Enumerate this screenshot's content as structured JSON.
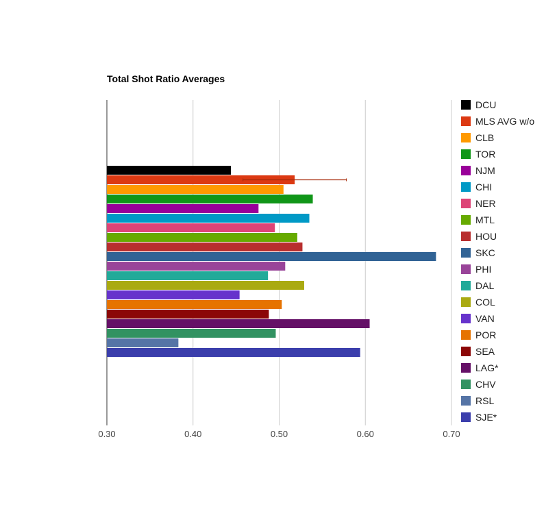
{
  "chart_data": {
    "type": "bar",
    "orientation": "horizontal",
    "title": "Total Shot Ratio Averages",
    "xlabel": "",
    "ylabel": "",
    "xlim": [
      0.3,
      0.7
    ],
    "xticks": [
      "0.30",
      "0.40",
      "0.50",
      "0.60",
      "0.70"
    ],
    "grid": true,
    "legend_position": "right",
    "series": [
      {
        "name": "DCU",
        "value": 0.444,
        "color": "#000000"
      },
      {
        "name": "MLS AVG w/o",
        "value": 0.518,
        "color": "#dc3912",
        "error_low": 0.458,
        "error_high": 0.578
      },
      {
        "name": "CLB",
        "value": 0.505,
        "color": "#ff9900"
      },
      {
        "name": "TOR",
        "value": 0.539,
        "color": "#109618"
      },
      {
        "name": "NJM",
        "value": 0.476,
        "color": "#990099"
      },
      {
        "name": "CHI",
        "value": 0.535,
        "color": "#0099c6"
      },
      {
        "name": "NER",
        "value": 0.495,
        "color": "#dd4477"
      },
      {
        "name": "MTL",
        "value": 0.521,
        "color": "#66aa00"
      },
      {
        "name": "HOU",
        "value": 0.527,
        "color": "#b82e2e"
      },
      {
        "name": "SKC",
        "value": 0.682,
        "color": "#316395"
      },
      {
        "name": "PHI",
        "value": 0.507,
        "color": "#994499"
      },
      {
        "name": "DAL",
        "value": 0.487,
        "color": "#22aa99"
      },
      {
        "name": "COL",
        "value": 0.529,
        "color": "#aaaa11"
      },
      {
        "name": "VAN",
        "value": 0.454,
        "color": "#6633cc"
      },
      {
        "name": "POR",
        "value": 0.503,
        "color": "#e67300"
      },
      {
        "name": "SEA",
        "value": 0.488,
        "color": "#8b0707"
      },
      {
        "name": "LAG*",
        "value": 0.605,
        "color": "#651067"
      },
      {
        "name": "CHV",
        "value": 0.496,
        "color": "#329262"
      },
      {
        "name": "RSL",
        "value": 0.383,
        "color": "#5574a6"
      },
      {
        "name": "SJE*",
        "value": 0.594,
        "color": "#3b3eac"
      }
    ]
  }
}
